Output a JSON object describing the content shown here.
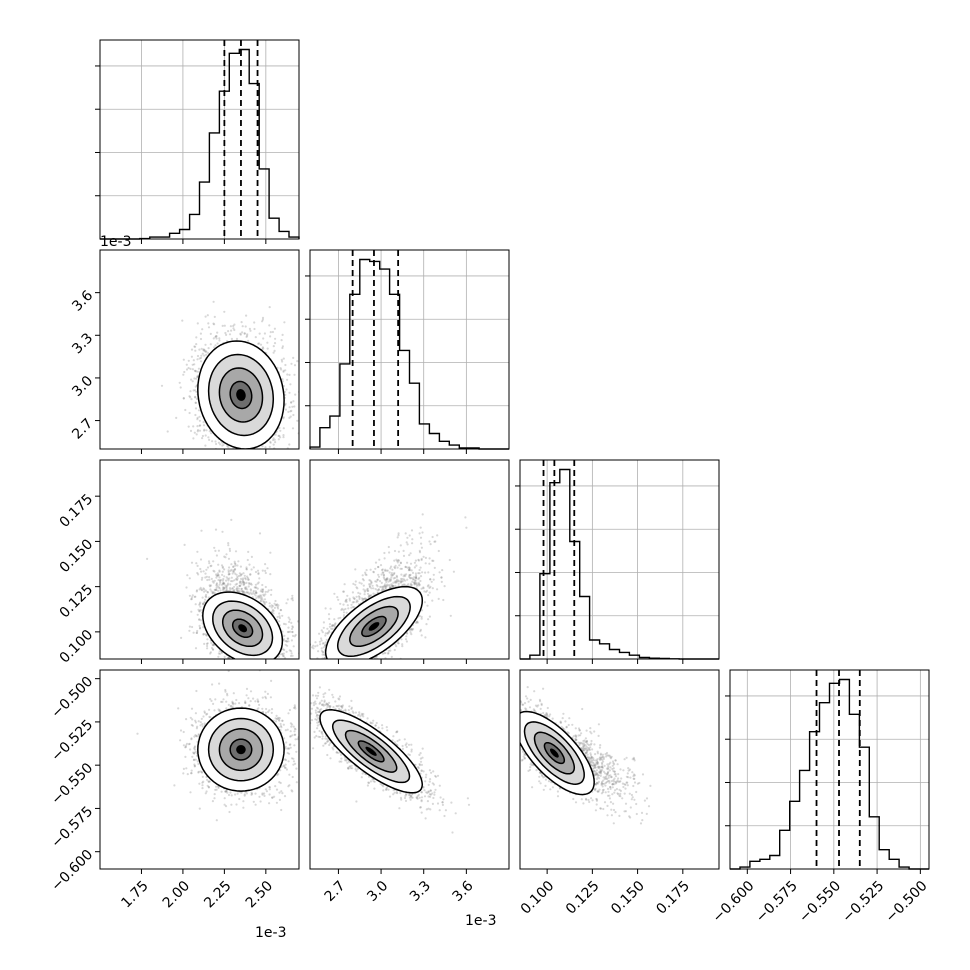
{
  "chart_data": {
    "type": "corner",
    "parameters": [
      {
        "index": 0,
        "scale_offset": "1e-3",
        "range": [
          1.5,
          2.7
        ],
        "ticks": [
          1.75,
          2.0,
          2.25,
          2.5
        ],
        "tick_labels": [
          "1.75",
          "2.00",
          "2.25",
          "2.50"
        ],
        "quantiles": [
          2.25,
          2.35,
          2.45
        ],
        "histogram": {
          "edges": [
            1.5,
            1.56,
            1.62,
            1.68,
            1.74,
            1.8,
            1.86,
            1.92,
            1.98,
            2.04,
            2.1,
            2.16,
            2.22,
            2.28,
            2.34,
            2.4,
            2.46,
            2.52,
            2.58,
            2.64,
            2.7
          ],
          "heights": [
            0,
            0,
            0,
            0,
            0.002,
            0.01,
            0.01,
            0.03,
            0.05,
            0.13,
            0.3,
            0.56,
            0.78,
            0.98,
            1.0,
            0.82,
            0.37,
            0.11,
            0.04,
            0.01
          ]
        }
      },
      {
        "index": 1,
        "scale_offset": "1e-3",
        "range": [
          2.5,
          3.9
        ],
        "ticks": [
          2.7,
          3.0,
          3.3,
          3.6
        ],
        "tick_labels": [
          "2.7",
          "3.0",
          "3.3",
          "3.6"
        ],
        "quantiles": [
          2.8,
          2.95,
          3.12
        ],
        "histogram": {
          "edges": [
            2.5,
            2.57,
            2.64,
            2.71,
            2.78,
            2.85,
            2.92,
            2.99,
            3.06,
            3.13,
            3.2,
            3.27,
            3.34,
            3.41,
            3.48,
            3.55,
            3.62,
            3.69,
            3.76,
            3.83,
            3.9
          ],
          "heights": [
            0.01,
            0.11,
            0.17,
            0.44,
            0.8,
            0.98,
            0.97,
            0.93,
            0.8,
            0.51,
            0.34,
            0.13,
            0.08,
            0.04,
            0.02,
            0.005,
            0.005,
            0,
            0,
            0
          ]
        }
      },
      {
        "index": 2,
        "scale_offset": "",
        "range": [
          0.085,
          0.195
        ],
        "ticks": [
          0.1,
          0.125,
          0.15,
          0.175
        ],
        "tick_labels": [
          "0.100",
          "0.125",
          "0.150",
          "0.175"
        ],
        "quantiles": [
          0.098,
          0.104,
          0.115
        ],
        "histogram": {
          "edges": [
            0.085,
            0.0905,
            0.096,
            0.1015,
            0.107,
            0.1125,
            0.118,
            0.1235,
            0.129,
            0.1345,
            0.14,
            0.1455,
            0.151,
            0.1565,
            0.162,
            0.1675,
            0.173,
            0.1785,
            0.184,
            0.1895,
            0.195
          ],
          "heights": [
            0,
            0.02,
            0.45,
            0.93,
            1.0,
            0.62,
            0.33,
            0.1,
            0.08,
            0.05,
            0.035,
            0.02,
            0.008,
            0.004,
            0.003,
            0.001,
            0,
            0,
            0,
            0
          ]
        }
      },
      {
        "index": 3,
        "scale_offset": "",
        "range": [
          -0.61,
          -0.495
        ],
        "ticks": [
          -0.6,
          -0.575,
          -0.55,
          -0.525,
          -0.5
        ],
        "tick_labels": [
          "−0.600",
          "−0.575",
          "−0.550",
          "−0.525",
          "−0.500"
        ],
        "quantiles": [
          -0.56,
          -0.547,
          -0.535
        ],
        "histogram": {
          "edges": [
            -0.61,
            -0.60425,
            -0.5985,
            -0.59275,
            -0.587,
            -0.58125,
            -0.5755,
            -0.56975,
            -0.564,
            -0.55825,
            -0.5525,
            -0.54675,
            -0.541,
            -0.53525,
            -0.5295,
            -0.52375,
            -0.518,
            -0.51225,
            -0.5065,
            -0.50075,
            -0.495
          ],
          "heights": [
            0,
            0.01,
            0.04,
            0.05,
            0.07,
            0.2,
            0.35,
            0.51,
            0.71,
            0.86,
            0.96,
            0.98,
            0.8,
            0.63,
            0.27,
            0.1,
            0.05,
            0.01,
            0,
            0
          ]
        }
      }
    ],
    "pairs": [
      {
        "x": 0,
        "y": 1,
        "center": [
          2.35,
          2.88
        ],
        "spread": [
          0.13,
          0.19
        ],
        "correlation": -0.1
      },
      {
        "x": 0,
        "y": 2,
        "center": [
          2.36,
          0.102
        ],
        "spread": [
          0.12,
          0.01
        ],
        "correlation": -0.35
      },
      {
        "x": 1,
        "y": 2,
        "center": [
          2.95,
          0.103
        ],
        "spread": [
          0.17,
          0.011
        ],
        "correlation": 0.65
      },
      {
        "x": 0,
        "y": 3,
        "center": [
          2.35,
          -0.541
        ],
        "spread": [
          0.13,
          0.012
        ],
        "correlation": 0.0
      },
      {
        "x": 1,
        "y": 3,
        "center": [
          2.93,
          -0.542
        ],
        "spread": [
          0.18,
          0.012
        ],
        "correlation": -0.8
      },
      {
        "x": 2,
        "y": 3,
        "center": [
          0.104,
          -0.543
        ],
        "spread": [
          0.011,
          0.012
        ],
        "correlation": -0.7
      }
    ],
    "contour_levels_sigma": [
      0.5,
      1.0,
      1.5,
      2.0
    ],
    "grid": true,
    "colors": {
      "scatter": "#7f7f7f",
      "line": "#000000",
      "grid": "#b0b0b0"
    }
  }
}
